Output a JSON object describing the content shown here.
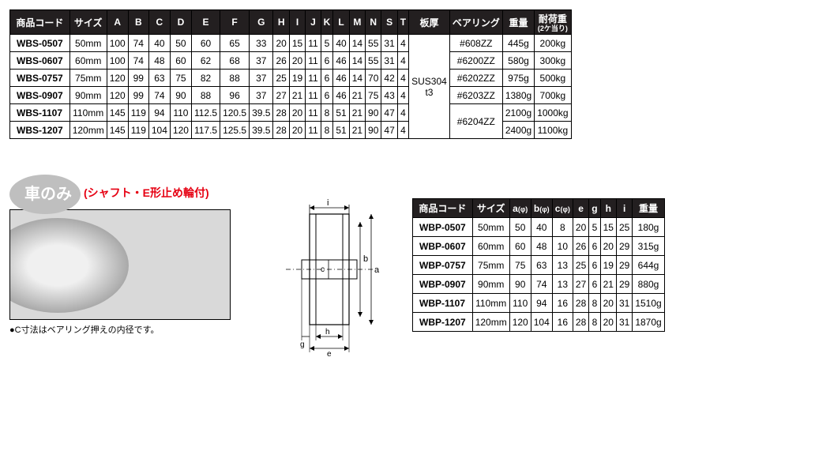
{
  "table1": {
    "headers": [
      "商品コード",
      "サイズ",
      "A",
      "B",
      "C",
      "D",
      "E",
      "F",
      "G",
      "H",
      "I",
      "J",
      "K",
      "L",
      "M",
      "N",
      "S",
      "T",
      "板厚",
      "ベアリング",
      "重量",
      "耐荷重"
    ],
    "subheader_load": "(2ケ当り)",
    "plate_thickness": "SUS304\nt3",
    "rows": [
      {
        "code": "WBS-0507",
        "size": "50mm",
        "A": "100",
        "B": "74",
        "C": "40",
        "D": "50",
        "E": "60",
        "F": "65",
        "G": "33",
        "H": "20",
        "I": "15",
        "J": "11",
        "K": "5",
        "L": "40",
        "M": "14",
        "N": "55",
        "S": "31",
        "T": "4",
        "bearing": "#608ZZ",
        "weight": "445g",
        "load": "200kg"
      },
      {
        "code": "WBS-0607",
        "size": "60mm",
        "A": "100",
        "B": "74",
        "C": "48",
        "D": "60",
        "E": "62",
        "F": "68",
        "G": "37",
        "H": "26",
        "I": "20",
        "J": "11",
        "K": "6",
        "L": "46",
        "M": "14",
        "N": "55",
        "S": "31",
        "T": "4",
        "bearing": "#6200ZZ",
        "weight": "580g",
        "load": "300kg"
      },
      {
        "code": "WBS-0757",
        "size": "75mm",
        "A": "120",
        "B": "99",
        "C": "63",
        "D": "75",
        "E": "82",
        "F": "88",
        "G": "37",
        "H": "25",
        "I": "19",
        "J": "11",
        "K": "6",
        "L": "46",
        "M": "14",
        "N": "70",
        "S": "42",
        "T": "4",
        "bearing": "#6202ZZ",
        "weight": "975g",
        "load": "500kg"
      },
      {
        "code": "WBS-0907",
        "size": "90mm",
        "A": "120",
        "B": "99",
        "C": "74",
        "D": "90",
        "E": "88",
        "F": "96",
        "G": "37",
        "H": "27",
        "I": "21",
        "J": "11",
        "K": "6",
        "L": "46",
        "M": "21",
        "N": "75",
        "S": "43",
        "T": "4",
        "bearing": "#6203ZZ",
        "weight": "1380g",
        "load": "700kg"
      },
      {
        "code": "WBS-1107",
        "size": "110mm",
        "A": "145",
        "B": "119",
        "C": "94",
        "D": "110",
        "E": "112.5",
        "F": "120.5",
        "G": "39.5",
        "H": "28",
        "I": "20",
        "J": "11",
        "K": "8",
        "L": "51",
        "M": "21",
        "N": "90",
        "S": "47",
        "T": "4",
        "bearing": "#6204ZZ",
        "weight": "2100g",
        "load": "1000kg"
      },
      {
        "code": "WBS-1207",
        "size": "120mm",
        "A": "145",
        "B": "119",
        "C": "104",
        "D": "120",
        "E": "117.5",
        "F": "125.5",
        "G": "39.5",
        "H": "28",
        "I": "20",
        "J": "11",
        "K": "8",
        "L": "51",
        "M": "21",
        "N": "90",
        "S": "47",
        "T": "4",
        "bearing": "",
        "weight": "2400g",
        "load": "1100kg"
      }
    ],
    "bearing_rowspan_last": 2
  },
  "section2": {
    "badge": "車のみ",
    "subtitle": "(シャフト・E形止め輪付)",
    "note": "●C寸法はベアリング押えの内径です。",
    "diagram_labels": {
      "i": "i",
      "b": "b",
      "a": "a",
      "c": "c",
      "g": "g",
      "h": "h",
      "e": "e"
    }
  },
  "table2": {
    "headers": [
      "商品コード",
      "サイズ",
      "a(φ)",
      "b(φ)",
      "c(φ)",
      "e",
      "g",
      "h",
      "i",
      "重量"
    ],
    "rows": [
      {
        "code": "WBP-0507",
        "size": "50mm",
        "a": "50",
        "b": "40",
        "c": "8",
        "e": "20",
        "g": "5",
        "h": "15",
        "i": "25",
        "weight": "180g"
      },
      {
        "code": "WBP-0607",
        "size": "60mm",
        "a": "60",
        "b": "48",
        "c": "10",
        "e": "26",
        "g": "6",
        "h": "20",
        "i": "29",
        "weight": "315g"
      },
      {
        "code": "WBP-0757",
        "size": "75mm",
        "a": "75",
        "b": "63",
        "c": "13",
        "e": "25",
        "g": "6",
        "h": "19",
        "i": "29",
        "weight": "644g"
      },
      {
        "code": "WBP-0907",
        "size": "90mm",
        "a": "90",
        "b": "74",
        "c": "13",
        "e": "27",
        "g": "6",
        "h": "21",
        "i": "29",
        "weight": "880g"
      },
      {
        "code": "WBP-1107",
        "size": "110mm",
        "a": "110",
        "b": "94",
        "c": "16",
        "e": "28",
        "g": "8",
        "h": "20",
        "i": "31",
        "weight": "1510g"
      },
      {
        "code": "WBP-1207",
        "size": "120mm",
        "a": "120",
        "b": "104",
        "c": "16",
        "e": "28",
        "g": "8",
        "h": "20",
        "i": "31",
        "weight": "1870g"
      }
    ]
  },
  "style": {
    "header_bg": "#231f20",
    "header_fg": "#ffffff",
    "border": "#000000",
    "accent_red": "#e60012",
    "badge_bg": "#bfbfbf"
  }
}
